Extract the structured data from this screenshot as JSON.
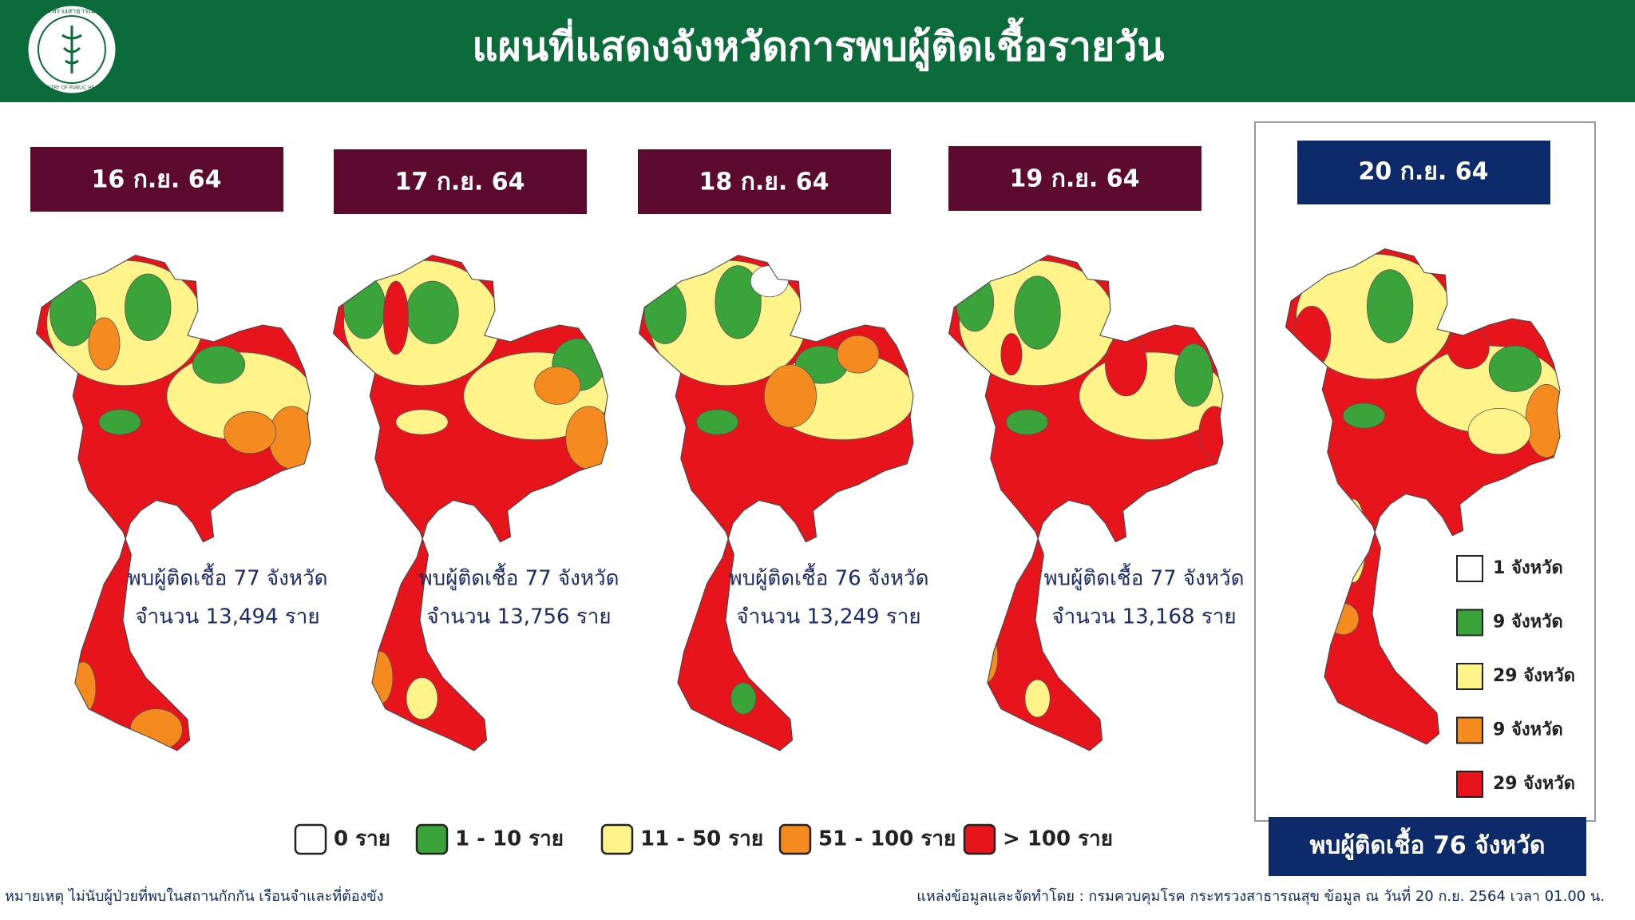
{
  "header": {
    "title": "แผนที่แสดงจังหวัดการพบผู้ติดเชื้อรายวัน",
    "logo_top": "กระทรวงสาธารณสุข",
    "logo_bottom": "MINISTRY OF PUBLIC HEALTH"
  },
  "days": [
    {
      "date": "16 ก.ย. 64",
      "provinces_text": "พบผู้ติดเชื้อ 77 จังหวัด",
      "cases_text": "จำนวน 13,494 ราย"
    },
    {
      "date": "17 ก.ย. 64",
      "provinces_text": "พบผู้ติดเชื้อ 77 จังหวัด",
      "cases_text": "จำนวน 13,756 ราย"
    },
    {
      "date": "18 ก.ย. 64",
      "provinces_text": "พบผู้ติดเชื้อ 76 จังหวัด",
      "cases_text": "จำนวน 13,249 ราย"
    },
    {
      "date": "19 ก.ย. 64",
      "provinces_text": "พบผู้ติดเชื้อ 77 จังหวัด",
      "cases_text": "จำนวน 13,168 ราย"
    }
  ],
  "latest": {
    "date": "20 ก.ย. 64",
    "legend": [
      {
        "label": "1 จังหวัด",
        "color": "#ffffff"
      },
      {
        "label": "9 จังหวัด",
        "color": "#3aa33a"
      },
      {
        "label": "29 จังหวัด",
        "color": "#fff38a"
      },
      {
        "label": "9 จังหวัด",
        "color": "#f58a1f"
      },
      {
        "label": "29 จังหวัด",
        "color": "#e8141c"
      }
    ],
    "summary": "พบผู้ติดเชื้อ 76 จังหวัด"
  },
  "legend": [
    {
      "label": "0 ราย",
      "color": "#ffffff"
    },
    {
      "label": "1 - 10 ราย",
      "color": "#3aa33a"
    },
    {
      "label": "11 - 50 ราย",
      "color": "#fff38a"
    },
    {
      "label": "51 - 100 ราย",
      "color": "#f58a1f"
    },
    {
      "label": "> 100 ราย",
      "color": "#e8141c"
    }
  ],
  "footer": {
    "note": "หมายเหตุ ไม่นับผู้ป่วยที่พบในสถานกักกัน เรือนจำและที่ต้องขัง",
    "source": "แหล่งข้อมูลและจัดทำโดย : กรมควบคุมโรค กระทรวงสาธารณสุข ข้อมูล ณ วันที่ 20 ก.ย. 2564 เวลา 01.00 น."
  }
}
